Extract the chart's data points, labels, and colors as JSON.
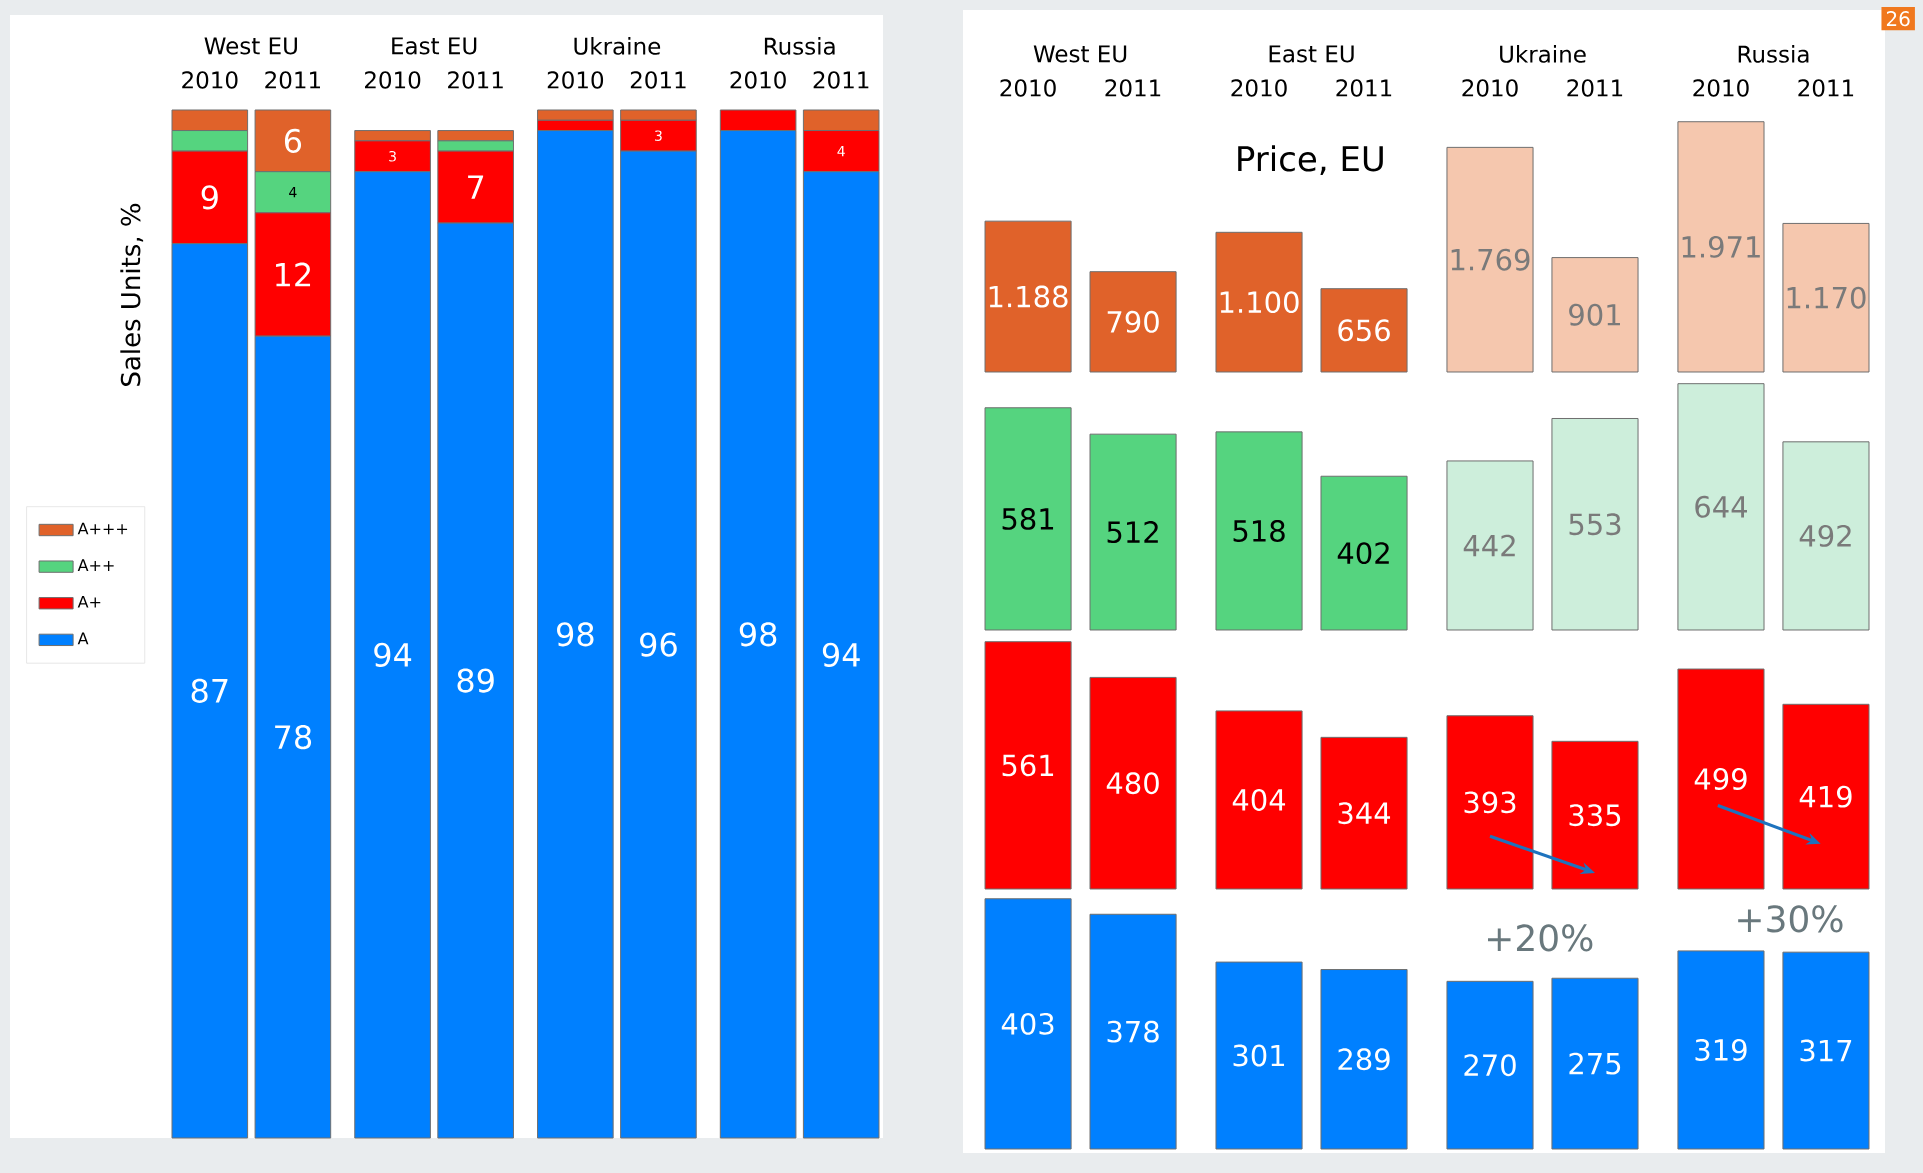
{
  "chart_data": [
    {
      "type": "bar",
      "stacked": true,
      "ylabel": "Sales Units, %",
      "categories": [
        "2010",
        "2011",
        "2010",
        "2011",
        "2010",
        "2011",
        "2010",
        "2011"
      ],
      "annotations": [
        "West EU",
        "East EU",
        "Ukraine",
        "Russia"
      ],
      "tick_labels": "x",
      "legend": "left",
      "series": [
        {
          "name": "A",
          "color": "#0080ff",
          "values": [
            87,
            78,
            94,
            89,
            98,
            96,
            98,
            94
          ],
          "value_labels": [
            "87",
            "78",
            "94",
            "89",
            "98",
            "96",
            "98",
            "94"
          ]
        },
        {
          "name": "A+",
          "color": "#ff0000",
          "values": [
            9,
            12,
            3,
            7,
            1,
            3,
            2,
            4
          ],
          "value_labels": [
            "9",
            "12",
            "3",
            "7",
            null,
            "3",
            null,
            "4"
          ]
        },
        {
          "name": "A++",
          "color": "#55d47f",
          "values": [
            2,
            4,
            0,
            1,
            0,
            0,
            0,
            0
          ],
          "value_labels": [
            null,
            "4",
            null,
            null,
            null,
            null,
            null,
            null
          ]
        },
        {
          "name": "A+++",
          "color": "#e0622a",
          "values": [
            2,
            6,
            1,
            1,
            1,
            1,
            0,
            2
          ],
          "value_labels": [
            null,
            "6",
            null,
            null,
            null,
            null,
            null,
            null
          ]
        }
      ]
    },
    {
      "type": "bar",
      "title": "Price, EU",
      "categories": [
        "2010",
        "2011",
        "2010",
        "2011",
        "2010",
        "2011",
        "2010",
        "2011"
      ],
      "annotations": [
        "West EU",
        "East EU",
        "Ukraine",
        "Russia"
      ],
      "tick_labels": "x",
      "values": [
        1188,
        790,
        1100,
        656,
        1769,
        901,
        1971,
        1170
      ],
      "value_labels": [
        "1.188",
        "790",
        "1.100",
        "656",
        "1.769",
        "901",
        "1.971",
        "1.170"
      ],
      "colors": [
        "#e0622a",
        "#e0622a",
        "#e0622a",
        "#e0622a",
        "#f5c7ae",
        "#f5c7ae",
        "#f5c7ae",
        "#f5c7ae"
      ]
    },
    {
      "type": "bar",
      "categories": [
        "2010",
        "2011",
        "2010",
        "2011",
        "2010",
        "2011",
        "2010",
        "2011"
      ],
      "tick_labels": false,
      "data_labels": true,
      "values": [
        581,
        512,
        518,
        402,
        442,
        553,
        644,
        492
      ],
      "colors": [
        "#55d47f",
        "#55d47f",
        "#55d47f",
        "#55d47f",
        "#cdeedb",
        "#cdeedb",
        "#cdeedb",
        "#cdeedb"
      ]
    },
    {
      "type": "bar",
      "categories": [
        "2010",
        "2011",
        "2010",
        "2011",
        "2010",
        "2011",
        "2010",
        "2011"
      ],
      "tick_labels": false,
      "data_labels": true,
      "values": [
        561,
        480,
        404,
        344,
        393,
        335,
        499,
        419
      ],
      "color": "#ff0000"
    },
    {
      "type": "bar",
      "categories": [
        "2010",
        "2011",
        "2010",
        "2011",
        "2010",
        "2011",
        "2010",
        "2011"
      ],
      "tick_labels": false,
      "data_labels": true,
      "values": [
        403,
        378,
        301,
        289,
        270,
        275,
        319,
        317
      ],
      "color": "#0080ff",
      "annotations": [
        "+20%",
        "+30%",
        "26"
      ]
    }
  ]
}
